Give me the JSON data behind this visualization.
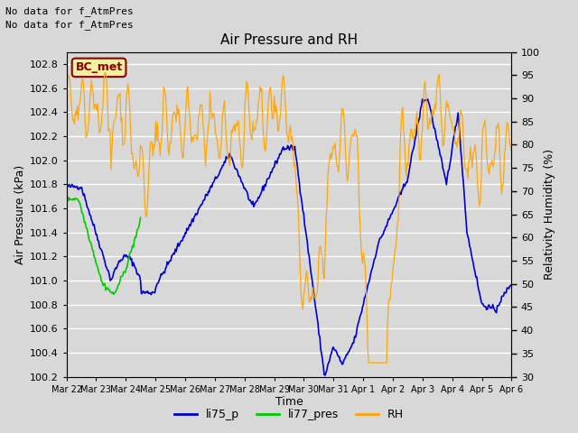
{
  "title": "Air Pressure and RH",
  "xlabel": "Time",
  "ylabel_left": "Air Pressure (kPa)",
  "ylabel_right": "Relativity Humidity (%)",
  "annotation_line1": "No data for f_AtmPres",
  "annotation_line2": "No data for f_AtmPres",
  "box_label": "BC_met",
  "ylim_left": [
    100.2,
    102.9
  ],
  "ylim_right": [
    30,
    100
  ],
  "yticks_left": [
    100.2,
    100.4,
    100.6,
    100.8,
    101.0,
    101.2,
    101.4,
    101.6,
    101.8,
    102.0,
    102.2,
    102.4,
    102.6,
    102.8
  ],
  "yticks_right": [
    30,
    35,
    40,
    45,
    50,
    55,
    60,
    65,
    70,
    75,
    80,
    85,
    90,
    95,
    100
  ],
  "xtick_labels": [
    "Mar 22",
    "Mar 23",
    "Mar 24",
    "Mar 25",
    "Mar 26",
    "Mar 27",
    "Mar 28",
    "Mar 29",
    "Mar 30",
    "Mar 31",
    "Apr 1",
    "Apr 2",
    "Apr 3",
    "Apr 4",
    "Apr 5",
    "Apr 6"
  ],
  "plot_bg_color": "#d8d8d8",
  "grid_color": "#ffffff",
  "line_color_li75": "#0000cc",
  "line_color_li77": "#00cc00",
  "line_color_rh": "#ffa500",
  "legend_labels": [
    "li75_p",
    "li77_pres",
    "RH"
  ],
  "n_points": 500
}
